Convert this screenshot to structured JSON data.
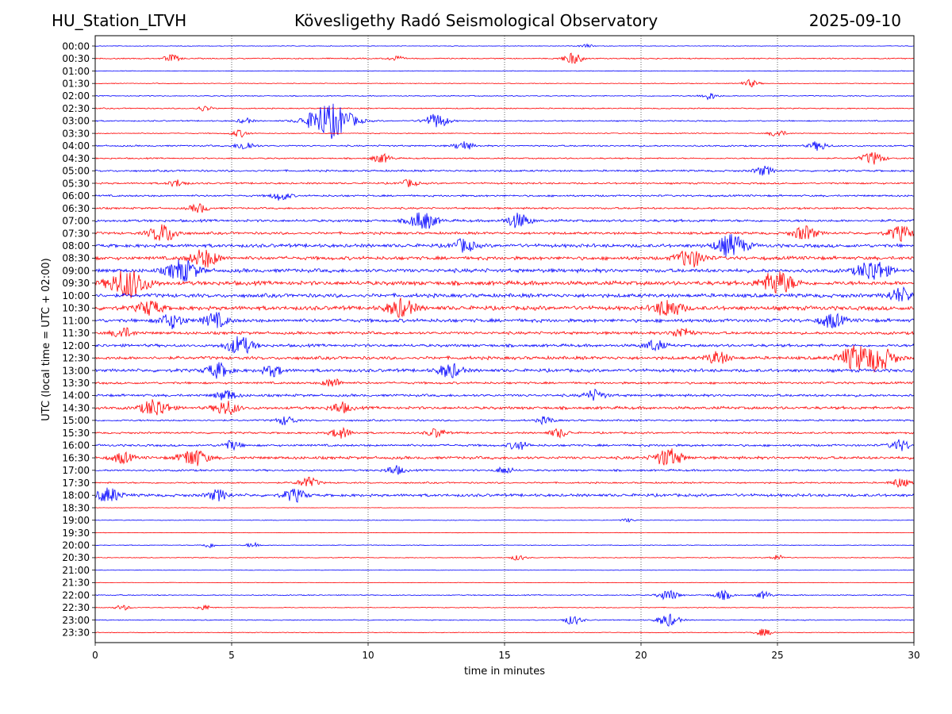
{
  "header": {
    "station": "HU_Station_LTVH",
    "observatory": "Kövesligethy Radó Seismological Observatory",
    "date": "2025-09-10"
  },
  "chart_data": {
    "type": "line",
    "title": "Kövesligethy Radó Seismological Observatory",
    "xlabel": "time in minutes",
    "ylabel": "UTC (local time = UTC + 02:00)",
    "xlim": [
      0,
      30
    ],
    "x_ticks": [
      0,
      5,
      10,
      15,
      20,
      25,
      30
    ],
    "grid": "vertical dotted lines at 5-minute intervals",
    "colors": {
      "even_rows": "#0000ff",
      "odd_rows": "#ff0000"
    },
    "rows": [
      {
        "time": "00:00",
        "amp": 0.1,
        "bursts": [
          [
            18.0,
            0.2
          ]
        ]
      },
      {
        "time": "00:30",
        "amp": 0.18,
        "bursts": [
          [
            2.8,
            0.4
          ],
          [
            17.5,
            0.6
          ],
          [
            11,
            0.3
          ]
        ]
      },
      {
        "time": "01:00",
        "amp": 0.1,
        "bursts": []
      },
      {
        "time": "01:30",
        "amp": 0.12,
        "bursts": [
          [
            24.0,
            0.4
          ]
        ]
      },
      {
        "time": "02:00",
        "amp": 0.15,
        "bursts": [
          [
            22.5,
            0.4
          ]
        ]
      },
      {
        "time": "02:30",
        "amp": 0.18,
        "bursts": [
          [
            4.0,
            0.3
          ]
        ]
      },
      {
        "time": "03:00",
        "amp": 0.2,
        "bursts": [
          [
            8.6,
            2.0
          ],
          [
            12.5,
            0.8
          ],
          [
            5.5,
            0.3
          ]
        ]
      },
      {
        "time": "03:30",
        "amp": 0.15,
        "bursts": [
          [
            5.3,
            0.4
          ],
          [
            25.0,
            0.4
          ]
        ]
      },
      {
        "time": "04:00",
        "amp": 0.25,
        "bursts": [
          [
            5.5,
            0.5
          ],
          [
            13.5,
            0.5
          ],
          [
            26.5,
            0.5
          ]
        ]
      },
      {
        "time": "04:30",
        "amp": 0.22,
        "bursts": [
          [
            10.5,
            0.5
          ],
          [
            28.5,
            0.7
          ]
        ]
      },
      {
        "time": "05:00",
        "amp": 0.3,
        "bursts": [
          [
            24.5,
            0.5
          ]
        ]
      },
      {
        "time": "05:30",
        "amp": 0.28,
        "bursts": [
          [
            3.0,
            0.4
          ],
          [
            11.5,
            0.4
          ]
        ]
      },
      {
        "time": "06:00",
        "amp": 0.3,
        "bursts": [
          [
            6.8,
            0.5
          ]
        ]
      },
      {
        "time": "06:30",
        "amp": 0.3,
        "bursts": [
          [
            3.8,
            0.5
          ]
        ]
      },
      {
        "time": "07:00",
        "amp": 0.4,
        "bursts": [
          [
            12.0,
            1.0
          ],
          [
            15.5,
            0.8
          ]
        ]
      },
      {
        "time": "07:30",
        "amp": 0.4,
        "bursts": [
          [
            2.5,
            1.0
          ],
          [
            26.0,
            0.8
          ],
          [
            29.5,
            0.8
          ]
        ]
      },
      {
        "time": "08:00",
        "amp": 0.55,
        "bursts": [
          [
            23.3,
            1.2
          ],
          [
            13.5,
            0.7
          ]
        ]
      },
      {
        "time": "08:30",
        "amp": 0.55,
        "bursts": [
          [
            4.0,
            1.0
          ],
          [
            21.8,
            1.0
          ]
        ]
      },
      {
        "time": "09:00",
        "amp": 0.6,
        "bursts": [
          [
            3.2,
            1.2
          ],
          [
            28.5,
            1.2
          ]
        ]
      },
      {
        "time": "09:30",
        "amp": 0.65,
        "bursts": [
          [
            1.2,
            1.6
          ],
          [
            25.0,
            1.3
          ]
        ]
      },
      {
        "time": "10:00",
        "amp": 0.6,
        "bursts": [
          [
            29.5,
            0.8
          ]
        ]
      },
      {
        "time": "10:30",
        "amp": 0.65,
        "bursts": [
          [
            11.2,
            1.0
          ],
          [
            21.0,
            1.0
          ],
          [
            2.0,
            0.8
          ]
        ]
      },
      {
        "time": "11:00",
        "amp": 0.55,
        "bursts": [
          [
            2.8,
            0.8
          ],
          [
            4.4,
            0.8
          ],
          [
            27.0,
            0.8
          ]
        ]
      },
      {
        "time": "11:30",
        "amp": 0.45,
        "bursts": [
          [
            1.0,
            0.6
          ],
          [
            21.5,
            0.6
          ]
        ]
      },
      {
        "time": "12:00",
        "amp": 0.45,
        "bursts": [
          [
            5.3,
            1.0
          ],
          [
            20.5,
            0.6
          ]
        ]
      },
      {
        "time": "12:30",
        "amp": 0.5,
        "bursts": [
          [
            27.8,
            1.2
          ],
          [
            28.7,
            1.3
          ],
          [
            22.8,
            0.7
          ]
        ]
      },
      {
        "time": "13:00",
        "amp": 0.5,
        "bursts": [
          [
            4.5,
            0.8
          ],
          [
            13.0,
            0.8
          ],
          [
            6.5,
            0.6
          ]
        ]
      },
      {
        "time": "13:30",
        "amp": 0.35,
        "bursts": [
          [
            8.7,
            0.5
          ]
        ]
      },
      {
        "time": "14:00",
        "amp": 0.4,
        "bursts": [
          [
            4.8,
            0.6
          ],
          [
            18.3,
            0.6
          ]
        ]
      },
      {
        "time": "14:30",
        "amp": 0.45,
        "bursts": [
          [
            2.2,
            1.0
          ],
          [
            4.8,
            0.8
          ],
          [
            9.0,
            0.6
          ]
        ]
      },
      {
        "time": "15:00",
        "amp": 0.28,
        "bursts": [
          [
            7.0,
            0.5
          ],
          [
            16.5,
            0.4
          ]
        ]
      },
      {
        "time": "15:30",
        "amp": 0.3,
        "bursts": [
          [
            9.0,
            0.6
          ],
          [
            12.5,
            0.5
          ],
          [
            17.0,
            0.5
          ]
        ]
      },
      {
        "time": "16:00",
        "amp": 0.35,
        "bursts": [
          [
            5.0,
            0.5
          ],
          [
            15.5,
            0.5
          ],
          [
            29.5,
            0.6
          ]
        ]
      },
      {
        "time": "16:30",
        "amp": 0.45,
        "bursts": [
          [
            3.6,
            1.0
          ],
          [
            21.0,
            1.0
          ],
          [
            1.0,
            0.6
          ]
        ]
      },
      {
        "time": "17:00",
        "amp": 0.3,
        "bursts": [
          [
            11.0,
            0.5
          ],
          [
            15.0,
            0.4
          ]
        ]
      },
      {
        "time": "17:30",
        "amp": 0.25,
        "bursts": [
          [
            7.8,
            0.6
          ],
          [
            29.5,
            0.5
          ]
        ]
      },
      {
        "time": "18:00",
        "amp": 0.45,
        "bursts": [
          [
            0.5,
            0.8
          ],
          [
            7.3,
            0.7
          ],
          [
            4.5,
            0.6
          ]
        ]
      },
      {
        "time": "18:30",
        "amp": 0.08,
        "bursts": []
      },
      {
        "time": "19:00",
        "amp": 0.1,
        "bursts": [
          [
            19.5,
            0.2
          ]
        ]
      },
      {
        "time": "19:30",
        "amp": 0.08,
        "bursts": []
      },
      {
        "time": "20:00",
        "amp": 0.1,
        "bursts": [
          [
            4.2,
            0.3
          ],
          [
            5.8,
            0.3
          ]
        ]
      },
      {
        "time": "20:30",
        "amp": 0.12,
        "bursts": [
          [
            15.5,
            0.3
          ],
          [
            25.0,
            0.3
          ]
        ]
      },
      {
        "time": "21:00",
        "amp": 0.08,
        "bursts": []
      },
      {
        "time": "21:30",
        "amp": 0.08,
        "bursts": []
      },
      {
        "time": "22:00",
        "amp": 0.15,
        "bursts": [
          [
            21.0,
            0.6
          ],
          [
            23.0,
            0.5
          ],
          [
            24.5,
            0.4
          ]
        ]
      },
      {
        "time": "22:30",
        "amp": 0.12,
        "bursts": [
          [
            1.0,
            0.3
          ],
          [
            4.0,
            0.3
          ]
        ]
      },
      {
        "time": "23:00",
        "amp": 0.15,
        "bursts": [
          [
            17.5,
            0.5
          ],
          [
            21.0,
            0.7
          ]
        ]
      },
      {
        "time": "23:30",
        "amp": 0.12,
        "bursts": [
          [
            24.5,
            0.4
          ]
        ]
      }
    ]
  }
}
